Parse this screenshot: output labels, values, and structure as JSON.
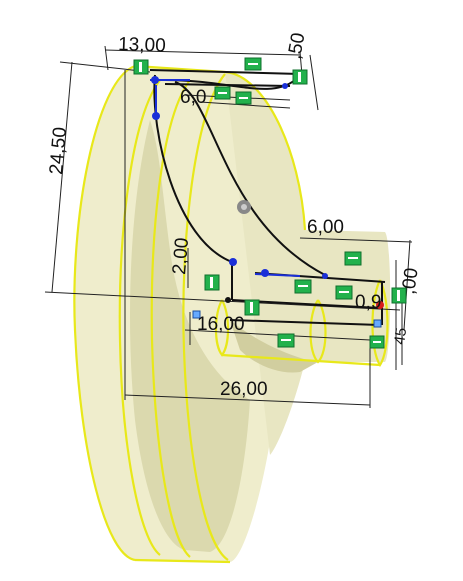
{
  "dimensions": {
    "d1": "13,00",
    "d2": ",50",
    "d3": "24,50",
    "d4": "6,0",
    "d5": "6,00",
    "d6": "2,00",
    "d7": "16,00",
    "d8": ",00",
    "d9": "0,9",
    "d10": "26,00",
    "d11": "45"
  },
  "colors": {
    "part_face": "#efedcc",
    "part_shadow": "#d6d3a6",
    "silhouette_edge": "#e8e81a",
    "sketch_line": "#111111",
    "relation_green": "#22b14c",
    "handle_blue": "#1a2fd8",
    "endpoint_red": "#d81a1a"
  },
  "icons": {
    "origin": "origin-icon",
    "relation": "horizontal-relation-icon",
    "vertical_relation": "vertical-relation-icon",
    "selection": "selection-point-icon"
  }
}
